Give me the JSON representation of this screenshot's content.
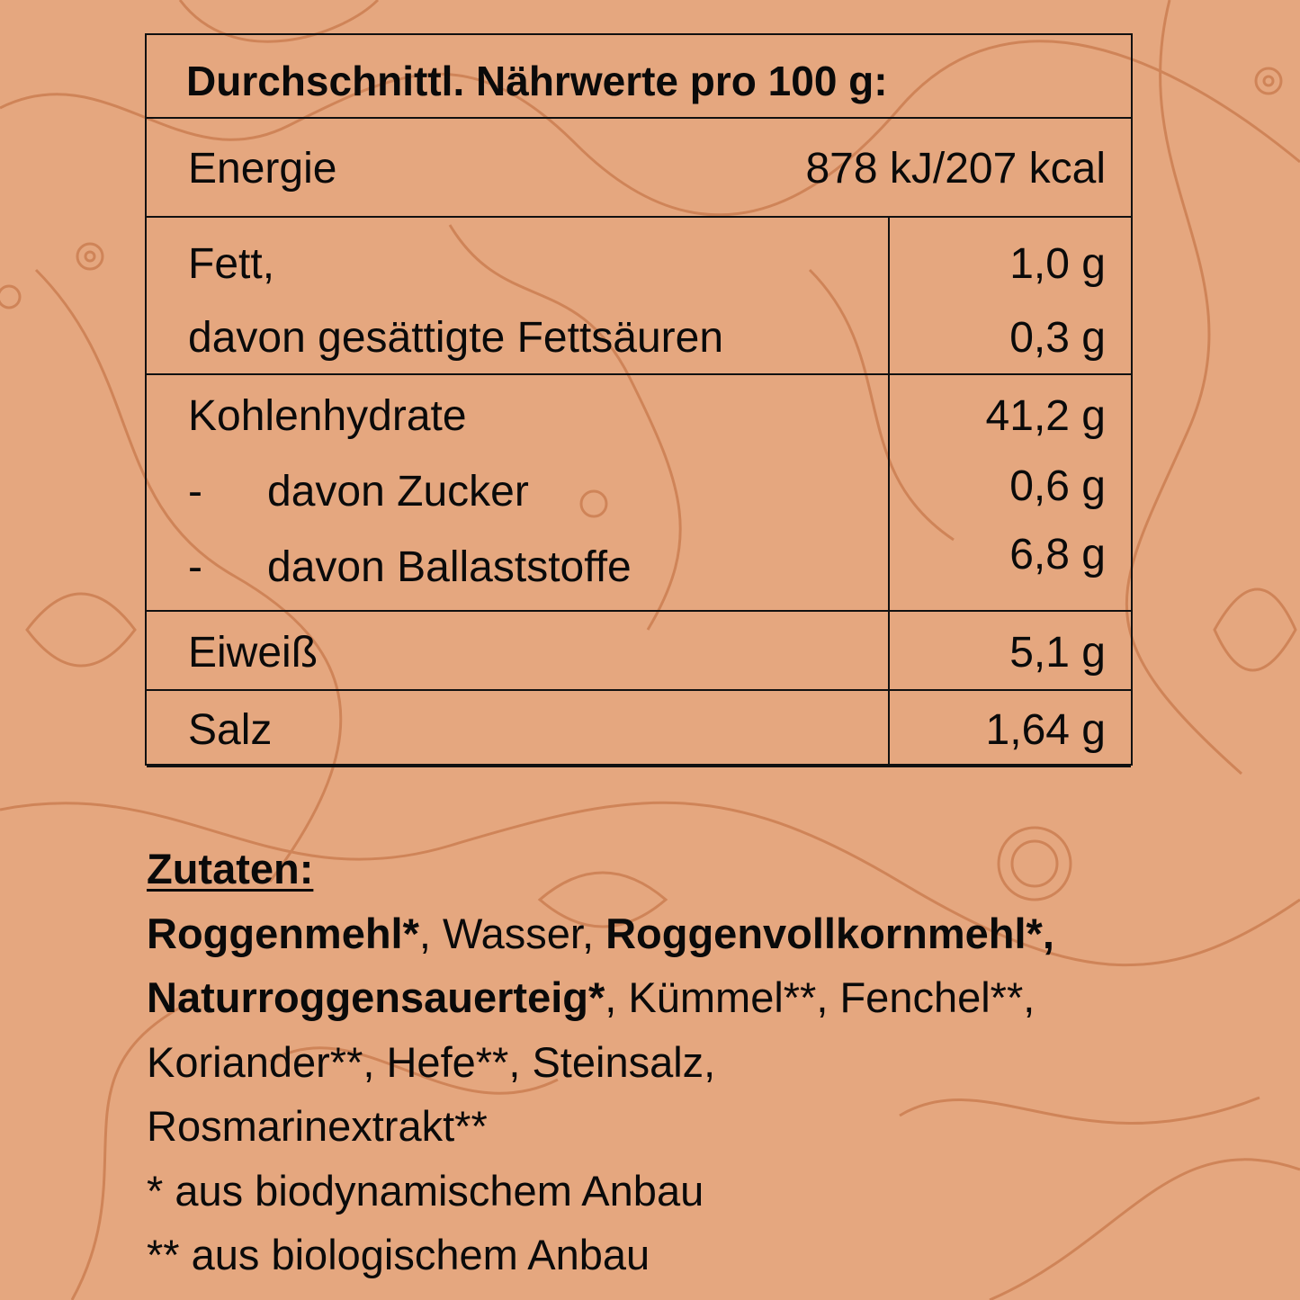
{
  "colors": {
    "background": "#e5a77f",
    "pattern": "#c8794c",
    "text": "#0a0a0a"
  },
  "nutrition": {
    "title": "Durchschnittl. Nährwerte pro 100 g:",
    "energy": {
      "label": "Energie",
      "value": "878 kJ/207 kcal"
    },
    "fat": {
      "label": "Fett,",
      "value": "1,0 g",
      "sub_label": "davon gesättigte Fettsäuren",
      "sub_value": "0,3 g"
    },
    "carbs": {
      "label": "Kohlenhydrate",
      "value": "41,2 g",
      "dash": "-",
      "sugar_label": "davon Zucker",
      "sugar_value": "0,6 g",
      "fiber_label": "davon Ballaststoffe",
      "fiber_value": "6,8 g"
    },
    "protein": {
      "label": "Eiweiß",
      "value": "5,1 g"
    },
    "salt": {
      "label": "Salz",
      "value": "1,64 g"
    }
  },
  "ingredients": {
    "heading": "Zutaten:",
    "i1": "Roggenmehl*",
    "s1": ", Wasser, ",
    "i2": "Roggenvollkornmehl*,",
    "i3": "Naturroggensauerteig*",
    "s2": ", Kümmel**, Fenchel**,",
    "line3": "Koriander**, Hefe**, Steinsalz,",
    "line4": "Rosmarinextrakt**",
    "note1": "* aus biodynamischem Anbau",
    "note2": "** aus biologischem Anbau"
  }
}
